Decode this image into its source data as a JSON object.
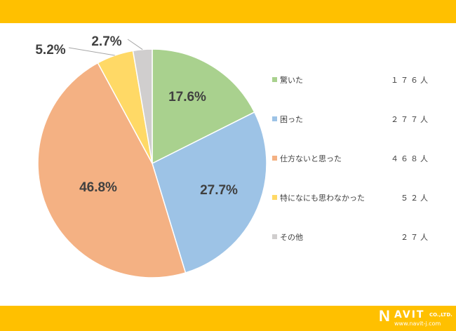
{
  "chart_data": {
    "type": "pie",
    "start": "top",
    "direction": "clockwise",
    "categories": [
      "驚いた",
      "困った",
      "仕方ないと思った",
      "特になにも思わなかった",
      "その他"
    ],
    "values": [
      176,
      277,
      468,
      52,
      27
    ],
    "value_labels": [
      "１７６人",
      "２７７人",
      "４６８人",
      "５２人",
      "２７人"
    ],
    "percent_labels": [
      "17.6%",
      "27.7%",
      "46.8%",
      "5.2%",
      "2.7%"
    ],
    "colors": [
      "#A9D18E",
      "#9DC3E6",
      "#F4B183",
      "#FFD966",
      "#D0CECE"
    ],
    "legend_position": "right"
  },
  "logo": {
    "brand": "NAVIT",
    "suffix": "CO.,LTD.",
    "url": "www.navit-j.com"
  },
  "colors": {
    "band": "#FFC000"
  }
}
